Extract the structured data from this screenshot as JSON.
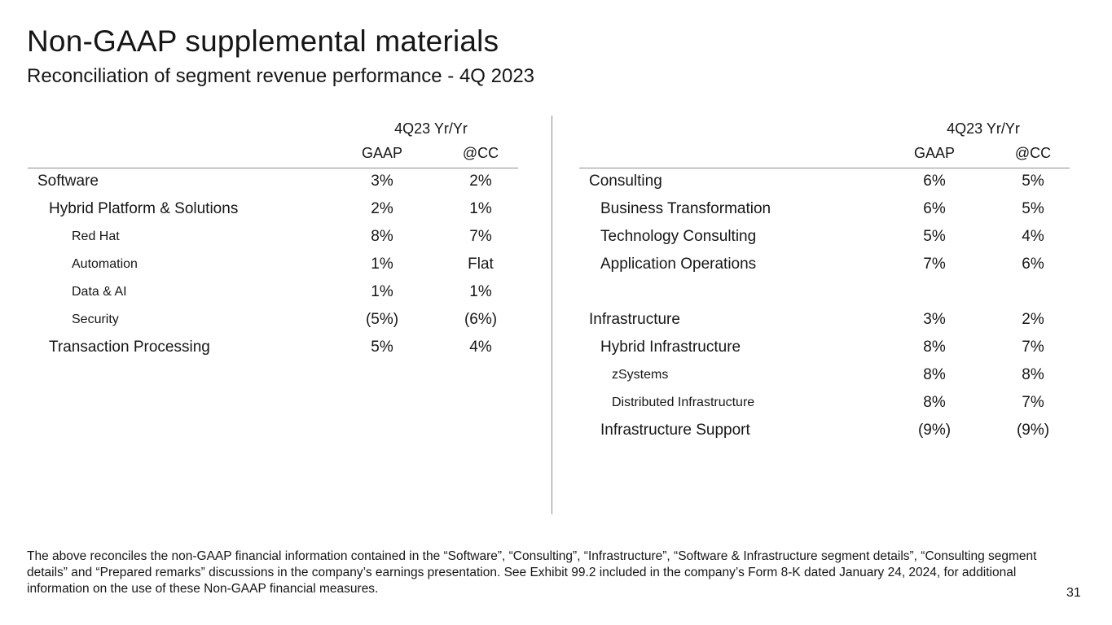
{
  "title": "Non-GAAP supplemental materials",
  "subtitle": "Reconciliation of segment revenue performance - 4Q 2023",
  "columns": {
    "period": "4Q23 Yr/Yr",
    "gaap": "GAAP",
    "cc": "@CC"
  },
  "left_table": {
    "rows": [
      {
        "label": "Software",
        "level": 0,
        "gaap": "3%",
        "cc": "2%"
      },
      {
        "label": "Hybrid Platform & Solutions",
        "level": 1,
        "gaap": "2%",
        "cc": "1%"
      },
      {
        "label": "Red Hat",
        "level": 2,
        "gaap": "8%",
        "cc": "7%"
      },
      {
        "label": "Automation",
        "level": 2,
        "gaap": "1%",
        "cc": "Flat"
      },
      {
        "label": "Data & AI",
        "level": 2,
        "gaap": "1%",
        "cc": "1%"
      },
      {
        "label": "Security",
        "level": 2,
        "gaap": "(5%)",
        "cc": "(6%)"
      },
      {
        "label": "Transaction Processing",
        "level": 1,
        "gaap": "5%",
        "cc": "4%"
      }
    ]
  },
  "right_table": {
    "rows": [
      {
        "label": "Consulting",
        "level": 0,
        "gaap": "6%",
        "cc": "5%"
      },
      {
        "label": "Business Transformation",
        "level": 1,
        "gaap": "6%",
        "cc": "5%"
      },
      {
        "label": "Technology Consulting",
        "level": 1,
        "gaap": "5%",
        "cc": "4%"
      },
      {
        "label": "Application Operations",
        "level": 1,
        "gaap": "7%",
        "cc": "6%"
      },
      {
        "label": "",
        "level": 0,
        "gaap": "",
        "cc": ""
      },
      {
        "label": "Infrastructure",
        "level": 0,
        "gaap": "3%",
        "cc": "2%"
      },
      {
        "label": "Hybrid Infrastructure",
        "level": 1,
        "gaap": "8%",
        "cc": "7%"
      },
      {
        "label": "zSystems",
        "level": 2,
        "gaap": "8%",
        "cc": "8%"
      },
      {
        "label": "Distributed Infrastructure",
        "level": 2,
        "gaap": "8%",
        "cc": "7%"
      },
      {
        "label": "Infrastructure Support",
        "level": 1,
        "gaap": "(9%)",
        "cc": "(9%)"
      }
    ]
  },
  "footnote": "The above reconciles the non-GAAP financial information contained in the “Software”, “Consulting”, “Infrastructure”, “Software & Infrastructure segment details”, “Consulting segment details” and “Prepared remarks” discussions in the company’s earnings presentation. See Exhibit 99.2 included in the company’s Form 8-K dated January 24, 2024, for additional information on the use of these Non-GAAP financial measures.",
  "page_number": "31"
}
